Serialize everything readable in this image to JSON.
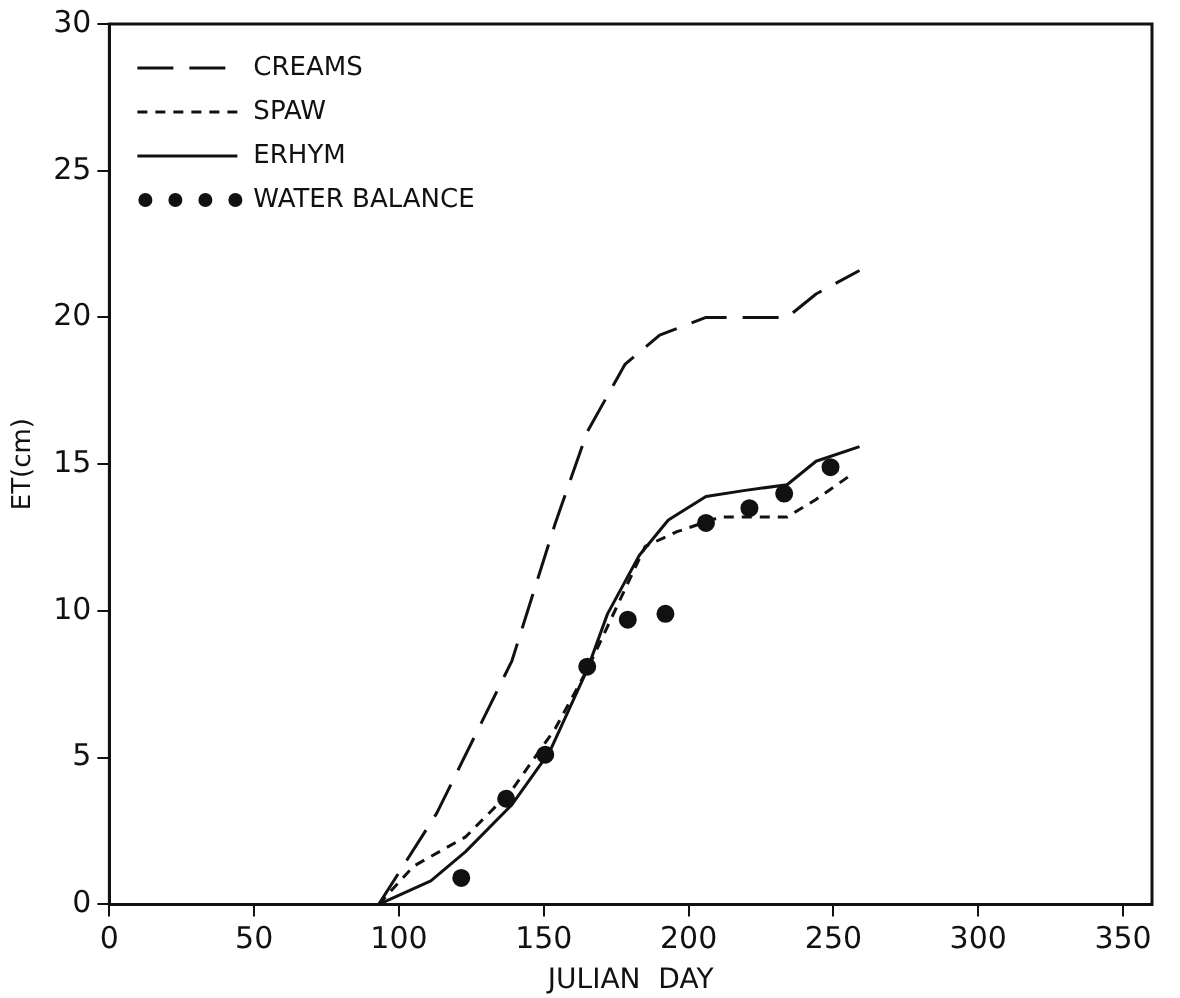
{
  "chart_data": {
    "type": "line",
    "xlabel": "JULIAN  DAY",
    "ylabel": "ET(cm)",
    "xlim": [
      0,
      360
    ],
    "ylim": [
      0,
      30
    ],
    "xticks": [
      0,
      50,
      100,
      150,
      200,
      250,
      300,
      350
    ],
    "yticks": [
      0,
      5,
      10,
      15,
      20,
      25,
      30
    ],
    "grid": false,
    "legend": "top left",
    "marker": "none",
    "series": [
      {
        "name": "CREAMS",
        "line_style": "dashed",
        "color": "#111111",
        "x": [
          93,
          113,
          139,
          154,
          165,
          178,
          190,
          206,
          221,
          234,
          244,
          259
        ],
        "values": [
          0,
          3.1,
          8.3,
          13,
          16.1,
          18.4,
          19.4,
          20,
          20,
          20,
          20.8,
          21.6
        ]
      },
      {
        "name": "SPAW",
        "line_style": "dotted",
        "color": "#111111",
        "x": [
          93,
          105,
          123,
          139,
          154,
          165,
          175,
          185,
          196,
          211,
          234,
          244,
          257
        ],
        "values": [
          0,
          1.3,
          2.3,
          3.9,
          6,
          8,
          10.1,
          12.2,
          12.7,
          13.2,
          13.2,
          13.8,
          14.7
        ]
      },
      {
        "name": "ERHYM",
        "line_style": "solid",
        "color": "#111111",
        "x": [
          93,
          111,
          123,
          139,
          152,
          165,
          172,
          183,
          193,
          206,
          219,
          234,
          244,
          259
        ],
        "values": [
          0,
          0.8,
          1.8,
          3.4,
          5.2,
          8,
          9.9,
          11.9,
          13.1,
          13.9,
          14.1,
          14.3,
          15.1,
          15.6
        ]
      },
      {
        "name": "WATER BALANCE",
        "type": "scatter",
        "marker": "circle",
        "color": "#111111",
        "x": [
          121.5,
          137,
          150.5,
          165,
          179,
          192,
          206,
          221,
          233,
          249
        ],
        "values": [
          0.9,
          3.6,
          5.1,
          8.1,
          9.7,
          9.9,
          13,
          13.5,
          14,
          14.9
        ]
      }
    ]
  }
}
